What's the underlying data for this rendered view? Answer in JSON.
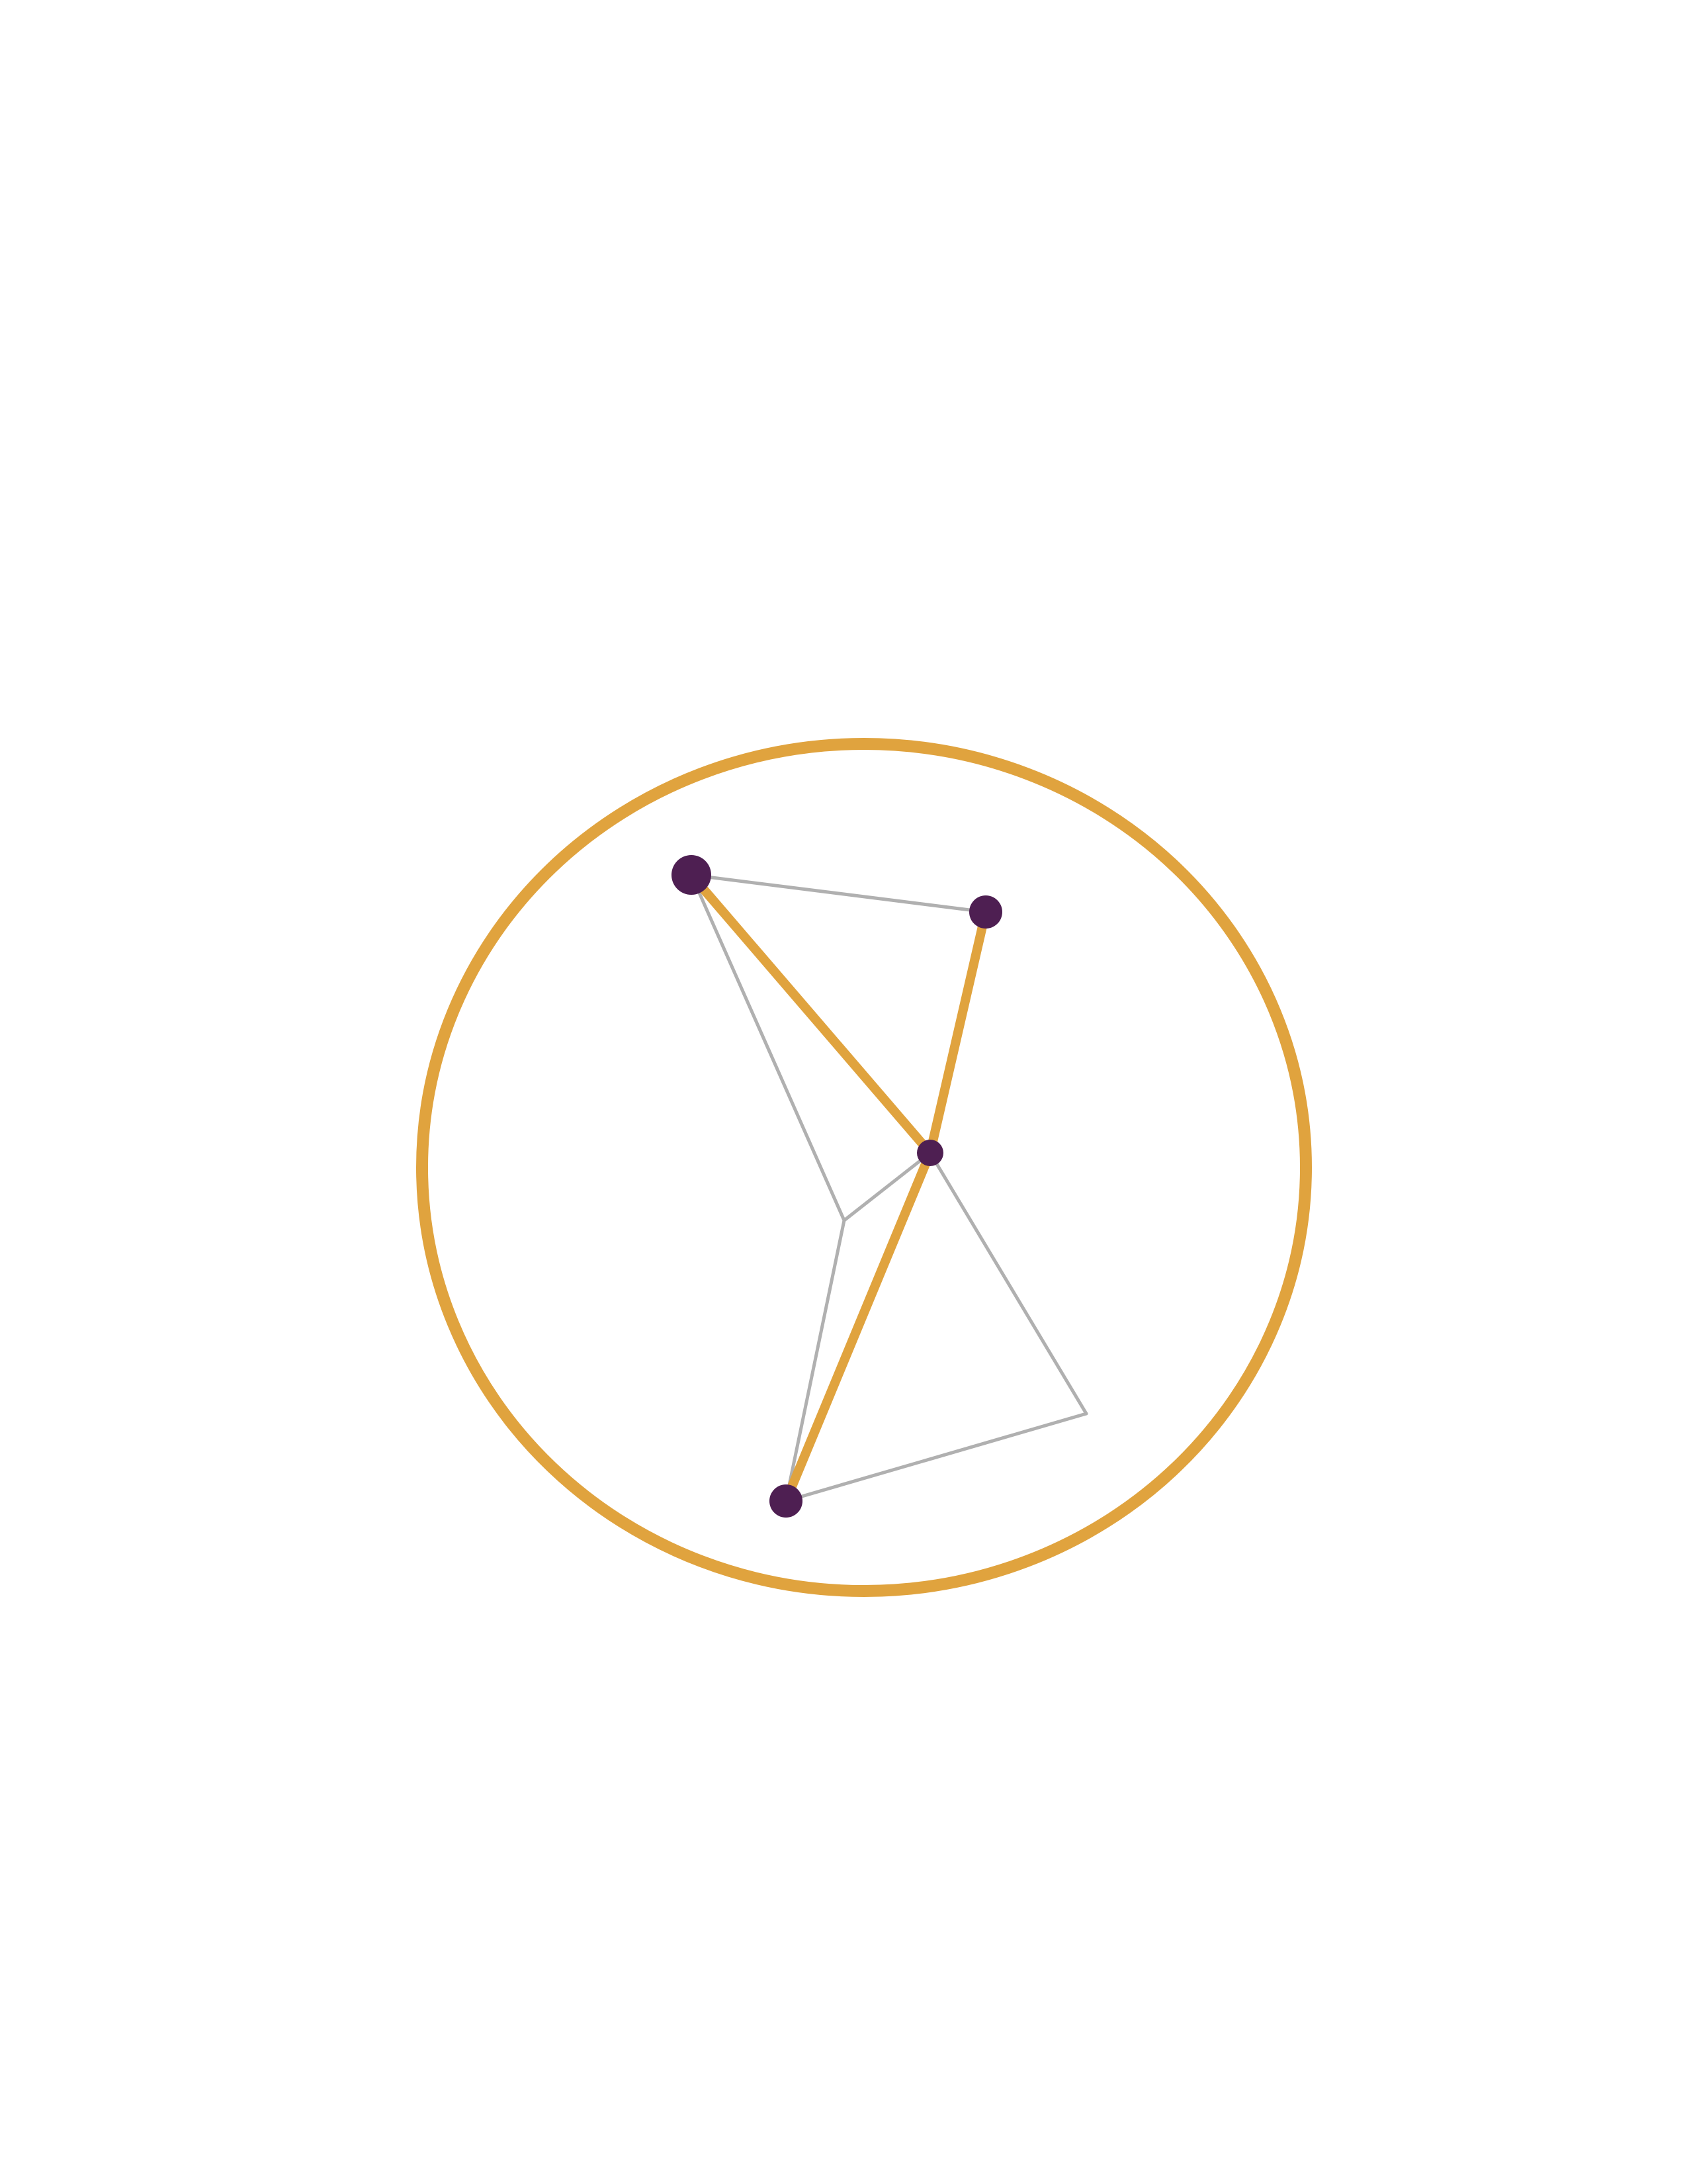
{
  "colors": {
    "background": "#ffffff",
    "ring": "#e0a33e",
    "highlight_edge": "#e0a33e",
    "thin_edge": "#b0b0b0",
    "node": "#4e1f52"
  },
  "diagram": {
    "nodes": [
      {
        "id": "a"
      },
      {
        "id": "b"
      },
      {
        "id": "c"
      },
      {
        "id": "d"
      },
      {
        "id": "e"
      },
      {
        "id": "f"
      }
    ],
    "thin_edges": [
      [
        "a",
        "b"
      ],
      [
        "a",
        "e"
      ],
      [
        "e",
        "c"
      ],
      [
        "e",
        "d"
      ],
      [
        "c",
        "f"
      ],
      [
        "f",
        "d"
      ]
    ],
    "highlight_edges": [
      [
        "a",
        "c"
      ],
      [
        "b",
        "c"
      ],
      [
        "c",
        "d"
      ]
    ],
    "marked_nodes": [
      "a",
      "b",
      "c",
      "d"
    ]
  }
}
